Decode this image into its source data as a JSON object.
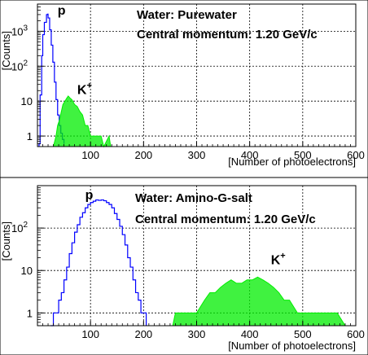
{
  "chart_data": [
    {
      "id": "top",
      "type": "histogram",
      "annotations": [
        "Water: Purewater",
        "Central momentum: 1.20 GeV/c"
      ],
      "xlabel": "[Number of photoelectrons]",
      "ylabel": "[Counts]",
      "xlim": [
        0,
        600
      ],
      "ylim": [
        0.5,
        6000
      ],
      "yscale": "log",
      "grid": true,
      "x_ticks": [
        "100",
        "200",
        "300",
        "400",
        "500",
        "600"
      ],
      "y_ticks": [
        {
          "value": 1,
          "label": "1"
        },
        {
          "value": 10,
          "label": "10"
        },
        {
          "value": 100,
          "label": "10",
          "exp": "2"
        },
        {
          "value": 1000,
          "label": "10",
          "exp": "3"
        }
      ],
      "series": [
        {
          "name": "p",
          "style": "line",
          "color": "#0000ff",
          "points": [
            [
              3,
              0.6
            ],
            [
              5,
              15
            ],
            [
              8,
              200
            ],
            [
              10,
              800
            ],
            [
              13,
              1800
            ],
            [
              17,
              3000
            ],
            [
              19,
              3100
            ],
            [
              20,
              2400
            ],
            [
              23,
              1100
            ],
            [
              26,
              400
            ],
            [
              29,
              130
            ],
            [
              32,
              35
            ],
            [
              35,
              11
            ],
            [
              38,
              4
            ],
            [
              41,
              2
            ],
            [
              44,
              1.2
            ],
            [
              47,
              0.8
            ],
            [
              50,
              0.6
            ]
          ],
          "label": {
            "text": "p",
            "x": 38,
            "y": 3000
          }
        },
        {
          "name": "K+",
          "style": "fill",
          "color": "#00ee00",
          "points": [
            [
              30,
              0.5
            ],
            [
              35,
              1
            ],
            [
              38,
              2
            ],
            [
              42,
              3
            ],
            [
              45,
              5
            ],
            [
              48,
              8
            ],
            [
              52,
              10
            ],
            [
              55,
              12
            ],
            [
              58,
              14
            ],
            [
              62,
              12
            ],
            [
              65,
              11
            ],
            [
              70,
              8
            ],
            [
              75,
              7
            ],
            [
              80,
              5
            ],
            [
              85,
              4
            ],
            [
              90,
              2
            ],
            [
              95,
              2
            ],
            [
              100,
              1
            ],
            [
              110,
              1
            ],
            [
              120,
              1
            ],
            [
              125,
              0.5
            ],
            [
              135,
              1
            ],
            [
              138,
              0.5
            ]
          ],
          "label": {
            "text": "K",
            "sup": "+",
            "x": 75,
            "y": 16
          }
        }
      ]
    },
    {
      "id": "bottom",
      "type": "histogram",
      "annotations": [
        "Water: Amino-G-salt",
        "Central momentum: 1.20 GeV/c"
      ],
      "xlabel": "[Number of photoelectrons]",
      "ylabel": "[Counts]",
      "xlim": [
        0,
        600
      ],
      "ylim": [
        0.5,
        1000
      ],
      "yscale": "log",
      "grid": true,
      "x_ticks": [
        "100",
        "200",
        "300",
        "400",
        "500",
        "600"
      ],
      "y_ticks": [
        {
          "value": 1,
          "label": "1"
        },
        {
          "value": 10,
          "label": "10"
        },
        {
          "value": 100,
          "label": "10",
          "exp": "2"
        }
      ],
      "series": [
        {
          "name": "p",
          "style": "line",
          "color": "#0000ff",
          "points": [
            [
              25,
              0.5
            ],
            [
              30,
              1
            ],
            [
              35,
              1
            ],
            [
              40,
              2
            ],
            [
              45,
              3
            ],
            [
              50,
              6
            ],
            [
              55,
              12
            ],
            [
              60,
              25
            ],
            [
              65,
              45
            ],
            [
              70,
              80
            ],
            [
              75,
              120
            ],
            [
              80,
              180
            ],
            [
              85,
              230
            ],
            [
              90,
              300
            ],
            [
              95,
              360
            ],
            [
              100,
              400
            ],
            [
              105,
              430
            ],
            [
              110,
              460
            ],
            [
              115,
              450
            ],
            [
              120,
              460
            ],
            [
              125,
              440
            ],
            [
              130,
              400
            ],
            [
              135,
              360
            ],
            [
              140,
              300
            ],
            [
              145,
              220
            ],
            [
              150,
              160
            ],
            [
              155,
              110
            ],
            [
              160,
              70
            ],
            [
              165,
              40
            ],
            [
              170,
              20
            ],
            [
              175,
              12
            ],
            [
              180,
              6
            ],
            [
              185,
              3
            ],
            [
              190,
              2
            ],
            [
              195,
              1
            ],
            [
              200,
              1
            ],
            [
              205,
              0.5
            ]
          ],
          "label": {
            "text": "p",
            "x": 90,
            "y": 480
          }
        },
        {
          "name": "K+",
          "style": "fill",
          "color": "#00ee00",
          "points": [
            [
              255,
              0.5
            ],
            [
              260,
              1
            ],
            [
              280,
              1
            ],
            [
              300,
              1
            ],
            [
              315,
              2
            ],
            [
              325,
              3
            ],
            [
              335,
              3
            ],
            [
              345,
              4
            ],
            [
              355,
              5
            ],
            [
              365,
              6
            ],
            [
              375,
              5
            ],
            [
              385,
              5
            ],
            [
              395,
              6
            ],
            [
              405,
              6
            ],
            [
              415,
              7
            ],
            [
              425,
              6
            ],
            [
              435,
              5
            ],
            [
              445,
              4
            ],
            [
              455,
              3
            ],
            [
              465,
              2
            ],
            [
              475,
              2
            ],
            [
              490,
              1
            ],
            [
              510,
              1
            ],
            [
              530,
              1
            ],
            [
              550,
              1
            ],
            [
              565,
              1
            ],
            [
              580,
              0.5
            ]
          ],
          "label": {
            "text": "K",
            "sup": "+",
            "x": 440,
            "y": 14
          }
        }
      ]
    }
  ]
}
